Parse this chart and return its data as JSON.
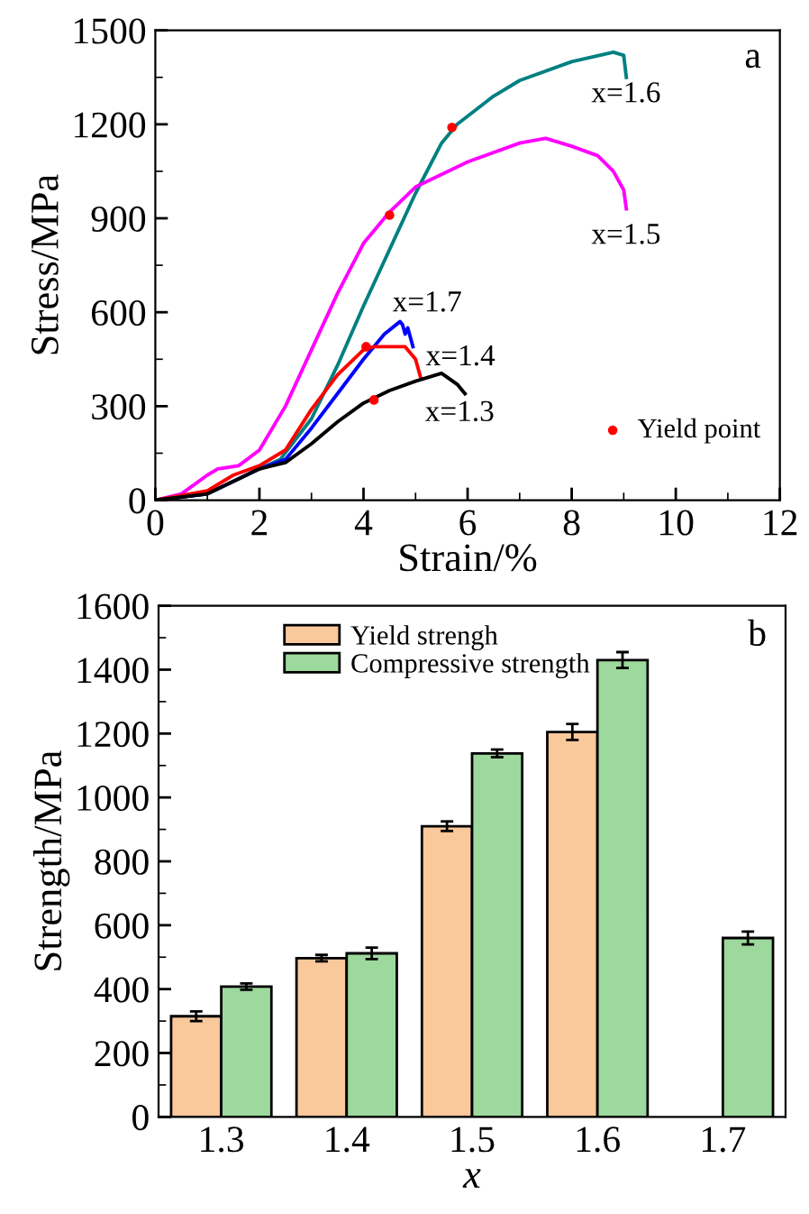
{
  "chart_data": [
    {
      "type": "line",
      "xlabel": "Strain/%",
      "ylabel": "Stress/MPa",
      "xlim": [
        0,
        12
      ],
      "ylim": [
        0,
        1500
      ],
      "xticks": [
        0,
        2,
        4,
        6,
        8,
        10,
        12
      ],
      "yticks": [
        0,
        300,
        600,
        900,
        1200,
        1500
      ],
      "grid": false,
      "legend": "bottom right",
      "marker": "none",
      "line_style": "solid",
      "series": [
        {
          "name": "x=1.6",
          "color": "#008080",
          "x": [
            0,
            1,
            2,
            2.4,
            3,
            3.5,
            4,
            4.5,
            5,
            5.5,
            5.8,
            6.5,
            7,
            8,
            8.8,
            9.0,
            9.05
          ],
          "values": [
            0,
            20,
            100,
            130,
            260,
            430,
            620,
            800,
            980,
            1140,
            1200,
            1290,
            1340,
            1400,
            1430,
            1420,
            1350
          ]
        },
        {
          "name": "x=1.5",
          "color": "#ff00ff",
          "x": [
            0,
            0.5,
            1,
            1.2,
            1.6,
            2,
            2.5,
            3,
            3.5,
            4,
            4.5,
            5,
            6,
            7,
            7.5,
            8,
            8.5,
            8.8,
            9.0,
            9.05
          ],
          "values": [
            0,
            20,
            80,
            100,
            110,
            160,
            300,
            480,
            660,
            820,
            920,
            1000,
            1080,
            1140,
            1155,
            1130,
            1100,
            1050,
            990,
            930
          ]
        },
        {
          "name": "x=1.7",
          "color": "#0000ff",
          "x": [
            0,
            1,
            2,
            2.5,
            3,
            3.5,
            4,
            4.4,
            4.7,
            4.75,
            4.8,
            4.85,
            4.95
          ],
          "values": [
            0,
            20,
            100,
            130,
            230,
            340,
            450,
            530,
            570,
            560,
            530,
            550,
            490
          ]
        },
        {
          "name": "x=1.4",
          "color": "#ff0000",
          "x": [
            0,
            1,
            1.5,
            2,
            2.5,
            3,
            3.5,
            4,
            4.2,
            4.8,
            5,
            5.1
          ],
          "values": [
            0,
            30,
            80,
            110,
            160,
            290,
            400,
            480,
            490,
            490,
            450,
            390
          ]
        },
        {
          "name": "x=1.3",
          "color": "#000000",
          "x": [
            0,
            1,
            2,
            2.5,
            3,
            3.5,
            4,
            4.5,
            5,
            5.5,
            5.8,
            5.95
          ],
          "values": [
            0,
            20,
            100,
            120,
            180,
            250,
            310,
            350,
            380,
            405,
            370,
            340
          ]
        },
        {
          "type": "scatter",
          "name": "Yield point",
          "color": "#ff0000",
          "marker": "circle",
          "x": [
            4.2,
            4.05,
            4.5,
            5.7
          ],
          "values": [
            320,
            490,
            910,
            1190
          ]
        }
      ],
      "annotations": [
        "a"
      ]
    },
    {
      "type": "bar",
      "xlabel": "x",
      "ylabel": "Strength/MPa",
      "categories": [
        "1.3",
        "1.4",
        "1.5",
        "1.6",
        "1.7"
      ],
      "ylim": [
        0,
        1600
      ],
      "yticks": [
        0,
        200,
        400,
        600,
        800,
        1000,
        1200,
        1400,
        1600
      ],
      "grid": false,
      "legend": "top",
      "series": [
        {
          "name": "Yield strengh",
          "color": "#f9c89b",
          "values": [
            315,
            497,
            910,
            1205,
            null
          ],
          "errors": [
            15,
            10,
            15,
            25,
            null
          ]
        },
        {
          "name": "Compressive strength",
          "color": "#9dd89d",
          "values": [
            408,
            512,
            1138,
            1430,
            560
          ],
          "errors": [
            10,
            18,
            12,
            25,
            20
          ]
        }
      ],
      "annotations": [
        "b"
      ]
    }
  ]
}
